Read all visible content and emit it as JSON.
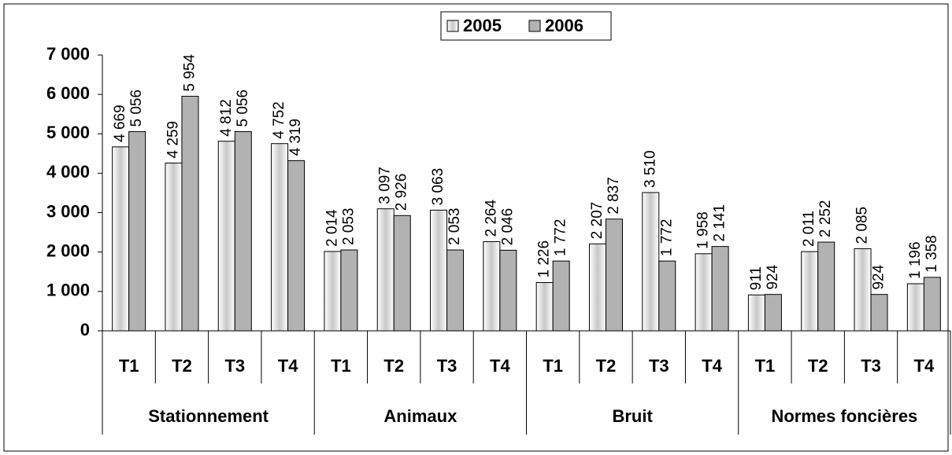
{
  "chart_data": {
    "type": "bar",
    "categories": [
      "T1",
      "T2",
      "T3",
      "T4",
      "T1",
      "T2",
      "T3",
      "T4",
      "T1",
      "T2",
      "T3",
      "T4",
      "T1",
      "T2",
      "T3",
      "T4"
    ],
    "groups": [
      "Stationnement",
      "Animaux",
      "Bruit",
      "Normes foncières"
    ],
    "series": [
      {
        "name": "2005",
        "color": "#ffffff",
        "values": [
          4669,
          4259,
          4812,
          4752,
          2014,
          3097,
          3063,
          2264,
          1226,
          2207,
          3510,
          1958,
          911,
          2011,
          2085,
          1196
        ],
        "value_labels": [
          "4 669",
          "4 259",
          "4 812",
          "4 752",
          "2 014",
          "3 097",
          "3 063",
          "2 264",
          "1 226",
          "2 207",
          "3 510",
          "1 958",
          "911",
          "2 011",
          "2 085",
          "1 196"
        ]
      },
      {
        "name": "2006",
        "color": "#b2b2b2",
        "values": [
          5056,
          5954,
          5056,
          4319,
          2053,
          2926,
          2053,
          2046,
          1772,
          2837,
          1772,
          2141,
          924,
          2252,
          924,
          1358
        ],
        "value_labels": [
          "5 056",
          "5 954",
          "5 056",
          "4 319",
          "2 053",
          "2 926",
          "2 053",
          "2 046",
          "1 772",
          "2 837",
          "1 772",
          "2 141",
          "924",
          "2 252",
          "924",
          "1 358"
        ]
      }
    ],
    "ylim": [
      0,
      7000
    ],
    "yticks": [
      {
        "value": 0,
        "label": "0"
      },
      {
        "value": 1000,
        "label": "1 000"
      },
      {
        "value": 2000,
        "label": "2 000"
      },
      {
        "value": 3000,
        "label": "3 000"
      },
      {
        "value": 4000,
        "label": "4 000"
      },
      {
        "value": 5000,
        "label": "5 000"
      },
      {
        "value": 6000,
        "label": "6 000"
      },
      {
        "value": 7000,
        "label": "7 000"
      }
    ],
    "legend": "top"
  }
}
